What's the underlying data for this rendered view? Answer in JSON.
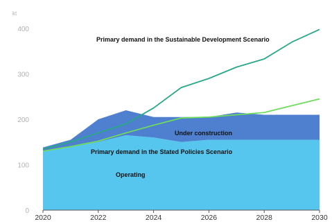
{
  "chart_data": {
    "type": "area",
    "unit_label": "kt",
    "x": [
      2020,
      2021,
      2022,
      2023,
      2024,
      2025,
      2026,
      2027,
      2028,
      2029,
      2030
    ],
    "xticks": [
      "2020",
      "2022",
      "2024",
      "2026",
      "2028",
      "2030"
    ],
    "yticks": [
      "0",
      "100",
      "200",
      "300",
      "400"
    ],
    "ylim": [
      0,
      420
    ],
    "grid": false,
    "colors": {
      "operating": "#56c6ee",
      "under_construction": "#4e80cf",
      "sds_line": "#2aa789",
      "steps_line": "#6fdc5c"
    },
    "series": [
      {
        "name": "Operating",
        "kind": "area",
        "values": [
          130,
          140,
          150,
          165,
          160,
          150,
          155,
          155,
          155,
          155,
          155
        ]
      },
      {
        "name": "Under construction",
        "kind": "stacked-area",
        "values": [
          8,
          15,
          50,
          55,
          45,
          55,
          50,
          60,
          55,
          55,
          55
        ]
      },
      {
        "name": "Primary demand in the Stated Policies Scenario",
        "kind": "line",
        "values": [
          130,
          140,
          152,
          170,
          187,
          203,
          205,
          210,
          215,
          230,
          245
        ]
      },
      {
        "name": "Primary demand in the Sustainable Development Scenario",
        "kind": "line",
        "values": [
          135,
          150,
          170,
          190,
          225,
          270,
          290,
          315,
          333,
          370,
          398
        ]
      }
    ],
    "annotations": [
      "Primary demand in the Sustainable Development Scenario",
      "Under construction",
      "Primary demand in the Stated Policies Scenario",
      "Operating"
    ]
  }
}
